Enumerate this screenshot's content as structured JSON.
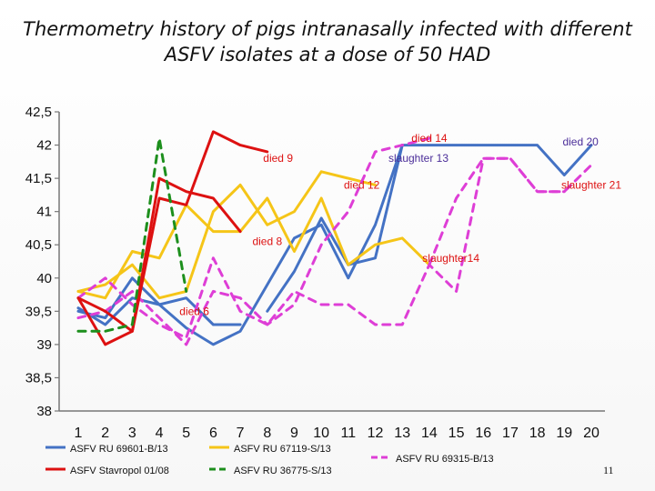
{
  "chart_data": {
    "type": "line",
    "title_lines": [
      "Thermometry history of pigs intranasally infected with different",
      "ASFV isolates at a dose of 50 HAD"
    ],
    "xlabel": "",
    "ylabel": "",
    "categories": [
      "1",
      "2",
      "3",
      "4",
      "5",
      "6",
      "7",
      "8",
      "9",
      "10",
      "11",
      "12",
      "13",
      "14",
      "15",
      "16",
      "17",
      "18",
      "19",
      "20"
    ],
    "x_range": [
      1,
      20
    ],
    "ylim": [
      38,
      42.5
    ],
    "yticks": [
      "38",
      "38,5",
      "39",
      "39,5",
      "40",
      "40,5",
      "41",
      "41,5",
      "42",
      "42,5"
    ],
    "ytick_values": [
      38,
      38.5,
      39,
      39.5,
      40,
      40.5,
      41,
      41.5,
      42,
      42.5
    ],
    "grid": false,
    "legend_position": "bottom",
    "series": [
      {
        "name": "ASFV RU 69601-B/13",
        "color": "#4472c4",
        "style": "solid",
        "lines": [
          [
            [
              1,
              39.5
            ],
            [
              2,
              39.4
            ],
            [
              3,
              40
            ],
            [
              4,
              39.6
            ],
            [
              5,
              39.7
            ],
            [
              6,
              39.3
            ],
            [
              7,
              39.3
            ]
          ],
          [
            [
              1,
              39.55
            ],
            [
              2,
              39.3
            ],
            [
              3,
              39.7
            ],
            [
              4,
              39.6
            ],
            [
              5,
              39.25
            ],
            [
              6,
              39
            ],
            [
              7,
              39.2
            ],
            [
              8,
              39.9
            ],
            [
              9,
              40.6
            ],
            [
              10,
              40.8
            ],
            [
              11,
              40.0
            ],
            [
              12,
              40.8
            ],
            [
              13,
              42
            ]
          ],
          [
            [
              8,
              39.5
            ],
            [
              9,
              40.1
            ],
            [
              10,
              40.9
            ],
            [
              11,
              40.2
            ],
            [
              12,
              40.3
            ],
            [
              13,
              42
            ],
            [
              14,
              42
            ],
            [
              15,
              42
            ],
            [
              16,
              42
            ],
            [
              17,
              42
            ],
            [
              18,
              42
            ],
            [
              19,
              41.55
            ],
            [
              20,
              42
            ]
          ]
        ]
      },
      {
        "name": "ASFV RU 67119-S/13",
        "color": "#f5c518",
        "style": "solid",
        "lines": [
          [
            [
              1,
              39.8
            ],
            [
              2,
              39.7
            ],
            [
              3,
              40.4
            ],
            [
              4,
              40.3
            ],
            [
              5,
              41.1
            ],
            [
              6,
              40.7
            ],
            [
              7,
              40.7
            ],
            [
              8,
              41.2
            ],
            [
              9,
              40.4
            ],
            [
              10,
              41.2
            ],
            [
              11,
              40.2
            ],
            [
              12,
              40.5
            ],
            [
              13,
              40.6
            ],
            [
              14,
              40.2
            ]
          ],
          [
            [
              1,
              39.8
            ],
            [
              2,
              39.9
            ],
            [
              3,
              40.2
            ],
            [
              4,
              39.7
            ],
            [
              5,
              39.8
            ],
            [
              6,
              41
            ],
            [
              7,
              41.4
            ],
            [
              8,
              40.8
            ],
            [
              9,
              41
            ],
            [
              10,
              41.6
            ],
            [
              11,
              41.5
            ],
            [
              12,
              41.4
            ]
          ]
        ]
      },
      {
        "name": "ASFV RU 69315-B/13",
        "color": "#de3ed6",
        "style": "dashed",
        "lines": [
          [
            [
              1,
              39.7
            ],
            [
              2,
              40
            ],
            [
              3,
              39.6
            ],
            [
              4,
              39.3
            ],
            [
              5,
              39.1
            ],
            [
              6,
              40.3
            ],
            [
              7,
              39.5
            ],
            [
              8,
              39.3
            ],
            [
              9,
              39.8
            ],
            [
              10,
              39.6
            ],
            [
              11,
              39.6
            ],
            [
              12,
              39.3
            ],
            [
              13,
              39.3
            ],
            [
              14,
              40.2
            ],
            [
              15,
              39.8
            ],
            [
              16,
              41.8
            ],
            [
              17,
              41.8
            ],
            [
              18,
              41.3
            ],
            [
              19,
              41.3
            ]
          ],
          [
            [
              1,
              39.4
            ],
            [
              2,
              39.5
            ],
            [
              3,
              39.8
            ],
            [
              4,
              39.4
            ],
            [
              5,
              39
            ],
            [
              6,
              39.8
            ],
            [
              7,
              39.7
            ],
            [
              8,
              39.3
            ],
            [
              9,
              39.6
            ],
            [
              10,
              40.5
            ],
            [
              11,
              41
            ],
            [
              12,
              41.9
            ],
            [
              13,
              42
            ],
            [
              14,
              42.1
            ]
          ],
          [
            [
              14,
              40.2
            ],
            [
              15,
              41.2
            ],
            [
              16,
              41.8
            ],
            [
              17,
              41.8
            ],
            [
              18,
              41.3
            ],
            [
              19,
              41.3
            ],
            [
              20,
              41.7
            ]
          ]
        ]
      },
      {
        "name": "ASFV Stavropol 01/08",
        "color": "#dd1111",
        "style": "solid",
        "lines": [
          [
            [
              1,
              39.7
            ],
            [
              2,
              39.5
            ],
            [
              3,
              39.2
            ],
            [
              4,
              41.2
            ],
            [
              5,
              41.1
            ],
            [
              6,
              42.2
            ],
            [
              7,
              42
            ],
            [
              8,
              41.9
            ]
          ],
          [
            [
              1,
              39.7
            ],
            [
              2,
              39
            ],
            [
              3,
              39.2
            ],
            [
              4,
              41.5
            ],
            [
              5,
              41.3
            ],
            [
              6,
              41.2
            ],
            [
              7,
              40.7
            ]
          ]
        ]
      },
      {
        "name": "ASFV RU 36775-S/13",
        "color": "#1d8f1d",
        "style": "dashed",
        "lines": [
          [
            [
              1,
              39.2
            ],
            [
              2,
              39.2
            ],
            [
              3,
              39.3
            ],
            [
              4,
              42.1
            ],
            [
              5,
              39.8
            ]
          ]
        ]
      }
    ],
    "annotations": [
      {
        "text": "died 14",
        "x": 14.0,
        "y": 42.1,
        "color": "#dd1111"
      },
      {
        "text": "died 20",
        "x": 19.6,
        "y": 42.05,
        "color": "#4b2e99"
      },
      {
        "text": "died 9",
        "x": 8.4,
        "y": 41.8,
        "color": "#dd1111"
      },
      {
        "text": "slaughter 13",
        "x": 13.6,
        "y": 41.8,
        "color": "#4b2e99"
      },
      {
        "text": "died 12",
        "x": 11.5,
        "y": 41.4,
        "color": "#dd1111"
      },
      {
        "text": "slaughter 21",
        "x": 20.0,
        "y": 41.4,
        "color": "#dd1111"
      },
      {
        "text": "died 8",
        "x": 8.0,
        "y": 40.55,
        "color": "#dd1111"
      },
      {
        "text": "slaughter14",
        "x": 14.8,
        "y": 40.3,
        "color": "#dd1111"
      },
      {
        "text": "died 6",
        "x": 5.3,
        "y": 39.5,
        "color": "#dd1111"
      }
    ]
  },
  "page_number": "11"
}
